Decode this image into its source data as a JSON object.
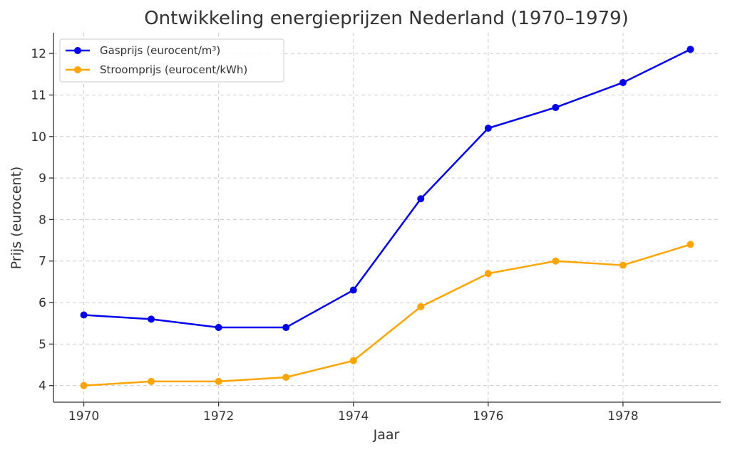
{
  "chart_data": {
    "type": "line",
    "title": "Ontwikkeling energieprijzen Nederland (1970–1979)",
    "xlabel": "Jaar",
    "ylabel": "Prijs (eurocent)",
    "x": [
      1970,
      1971,
      1972,
      1973,
      1974,
      1975,
      1976,
      1977,
      1978,
      1979
    ],
    "xticks": [
      1970,
      1972,
      1974,
      1976,
      1978
    ],
    "xlim": [
      1969.55,
      1979.45
    ],
    "yticks": [
      4,
      5,
      6,
      7,
      8,
      9,
      10,
      11,
      12
    ],
    "ylim": [
      3.6,
      12.5
    ],
    "grid": true,
    "legend_position": "top-left",
    "series": [
      {
        "name": "Gasprijs (eurocent/m³)",
        "color": "#0000ee",
        "marker": "circle",
        "values": [
          5.7,
          5.6,
          5.4,
          5.4,
          6.3,
          8.5,
          10.2,
          10.7,
          11.3,
          12.1
        ]
      },
      {
        "name": "Stroomprijs (eurocent/kWh)",
        "color": "#ffa500",
        "marker": "circle",
        "values": [
          4.0,
          4.1,
          4.1,
          4.2,
          4.6,
          5.9,
          6.7,
          7.0,
          6.9,
          7.4
        ]
      }
    ]
  }
}
